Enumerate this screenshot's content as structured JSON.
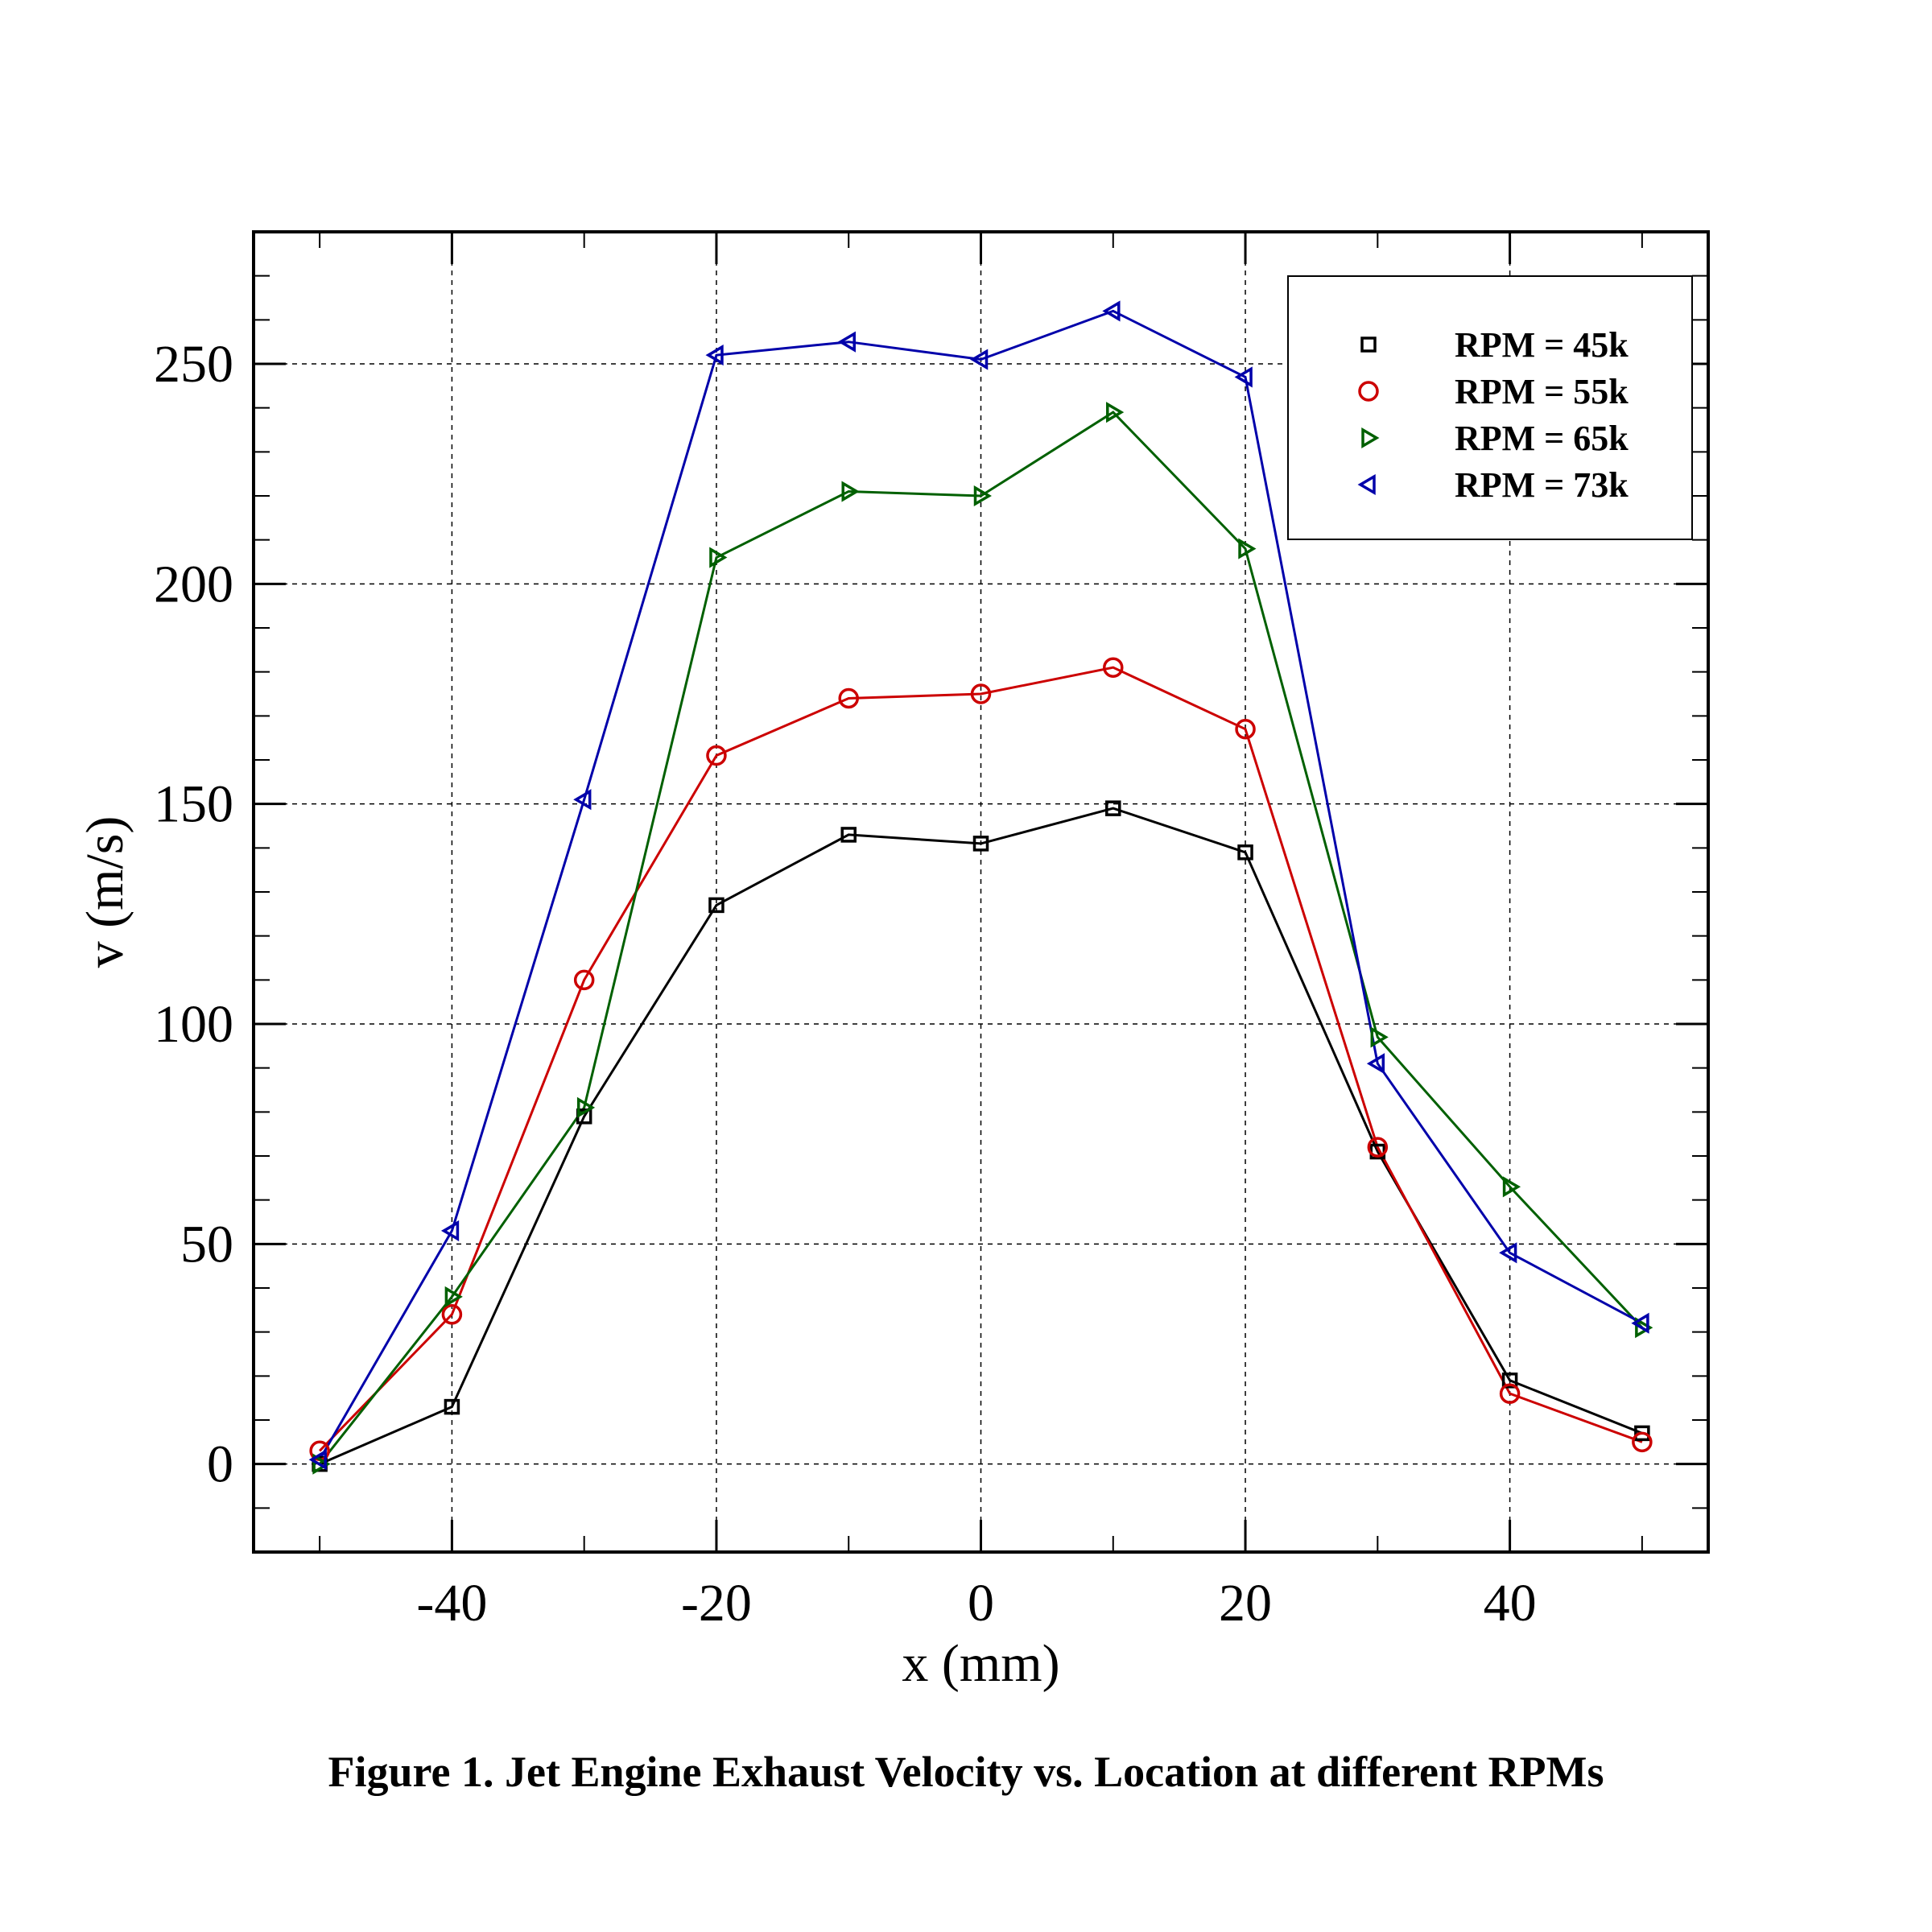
{
  "caption": "Figure 1. Jet Engine Exhaust Velocity vs. Location at different RPMs",
  "chart_data": {
    "type": "line",
    "title": "",
    "xlabel": "x (mm)",
    "ylabel": "v (m/s)",
    "xlim": [
      -55,
      55
    ],
    "ylim": [
      -20,
      280
    ],
    "xticks": [
      -40,
      -20,
      0,
      20,
      40
    ],
    "xtick_labels": [
      "-40",
      "-20",
      "0",
      "20",
      "40"
    ],
    "yticks": [
      0,
      50,
      100,
      150,
      200,
      250
    ],
    "ytick_labels": [
      "0",
      "50",
      "100",
      "150",
      "200",
      "250"
    ],
    "grid": "dashed",
    "legend_position": "top-right",
    "x": [
      -50,
      -40,
      -30,
      -20,
      -10,
      0,
      10,
      20,
      30,
      40,
      50
    ],
    "series": [
      {
        "name": "RPM = 45k",
        "color": "#000000",
        "marker": "square",
        "values": [
          0,
          13,
          79,
          127,
          143,
          141,
          149,
          139,
          71,
          19,
          7
        ]
      },
      {
        "name": "RPM = 55k",
        "color": "#cc0000",
        "marker": "circle",
        "values": [
          3,
          34,
          110,
          161,
          174,
          175,
          181,
          167,
          72,
          16,
          5
        ]
      },
      {
        "name": "RPM = 65k",
        "color": "#006000",
        "marker": "triangle-right",
        "values": [
          0,
          38,
          81,
          206,
          221,
          220,
          239,
          208,
          97,
          63,
          31
        ]
      },
      {
        "name": "RPM = 73k",
        "color": "#0000aa",
        "marker": "triangle-left",
        "values": [
          1,
          53,
          151,
          252,
          255,
          251,
          262,
          247,
          91,
          48,
          32
        ]
      }
    ]
  }
}
